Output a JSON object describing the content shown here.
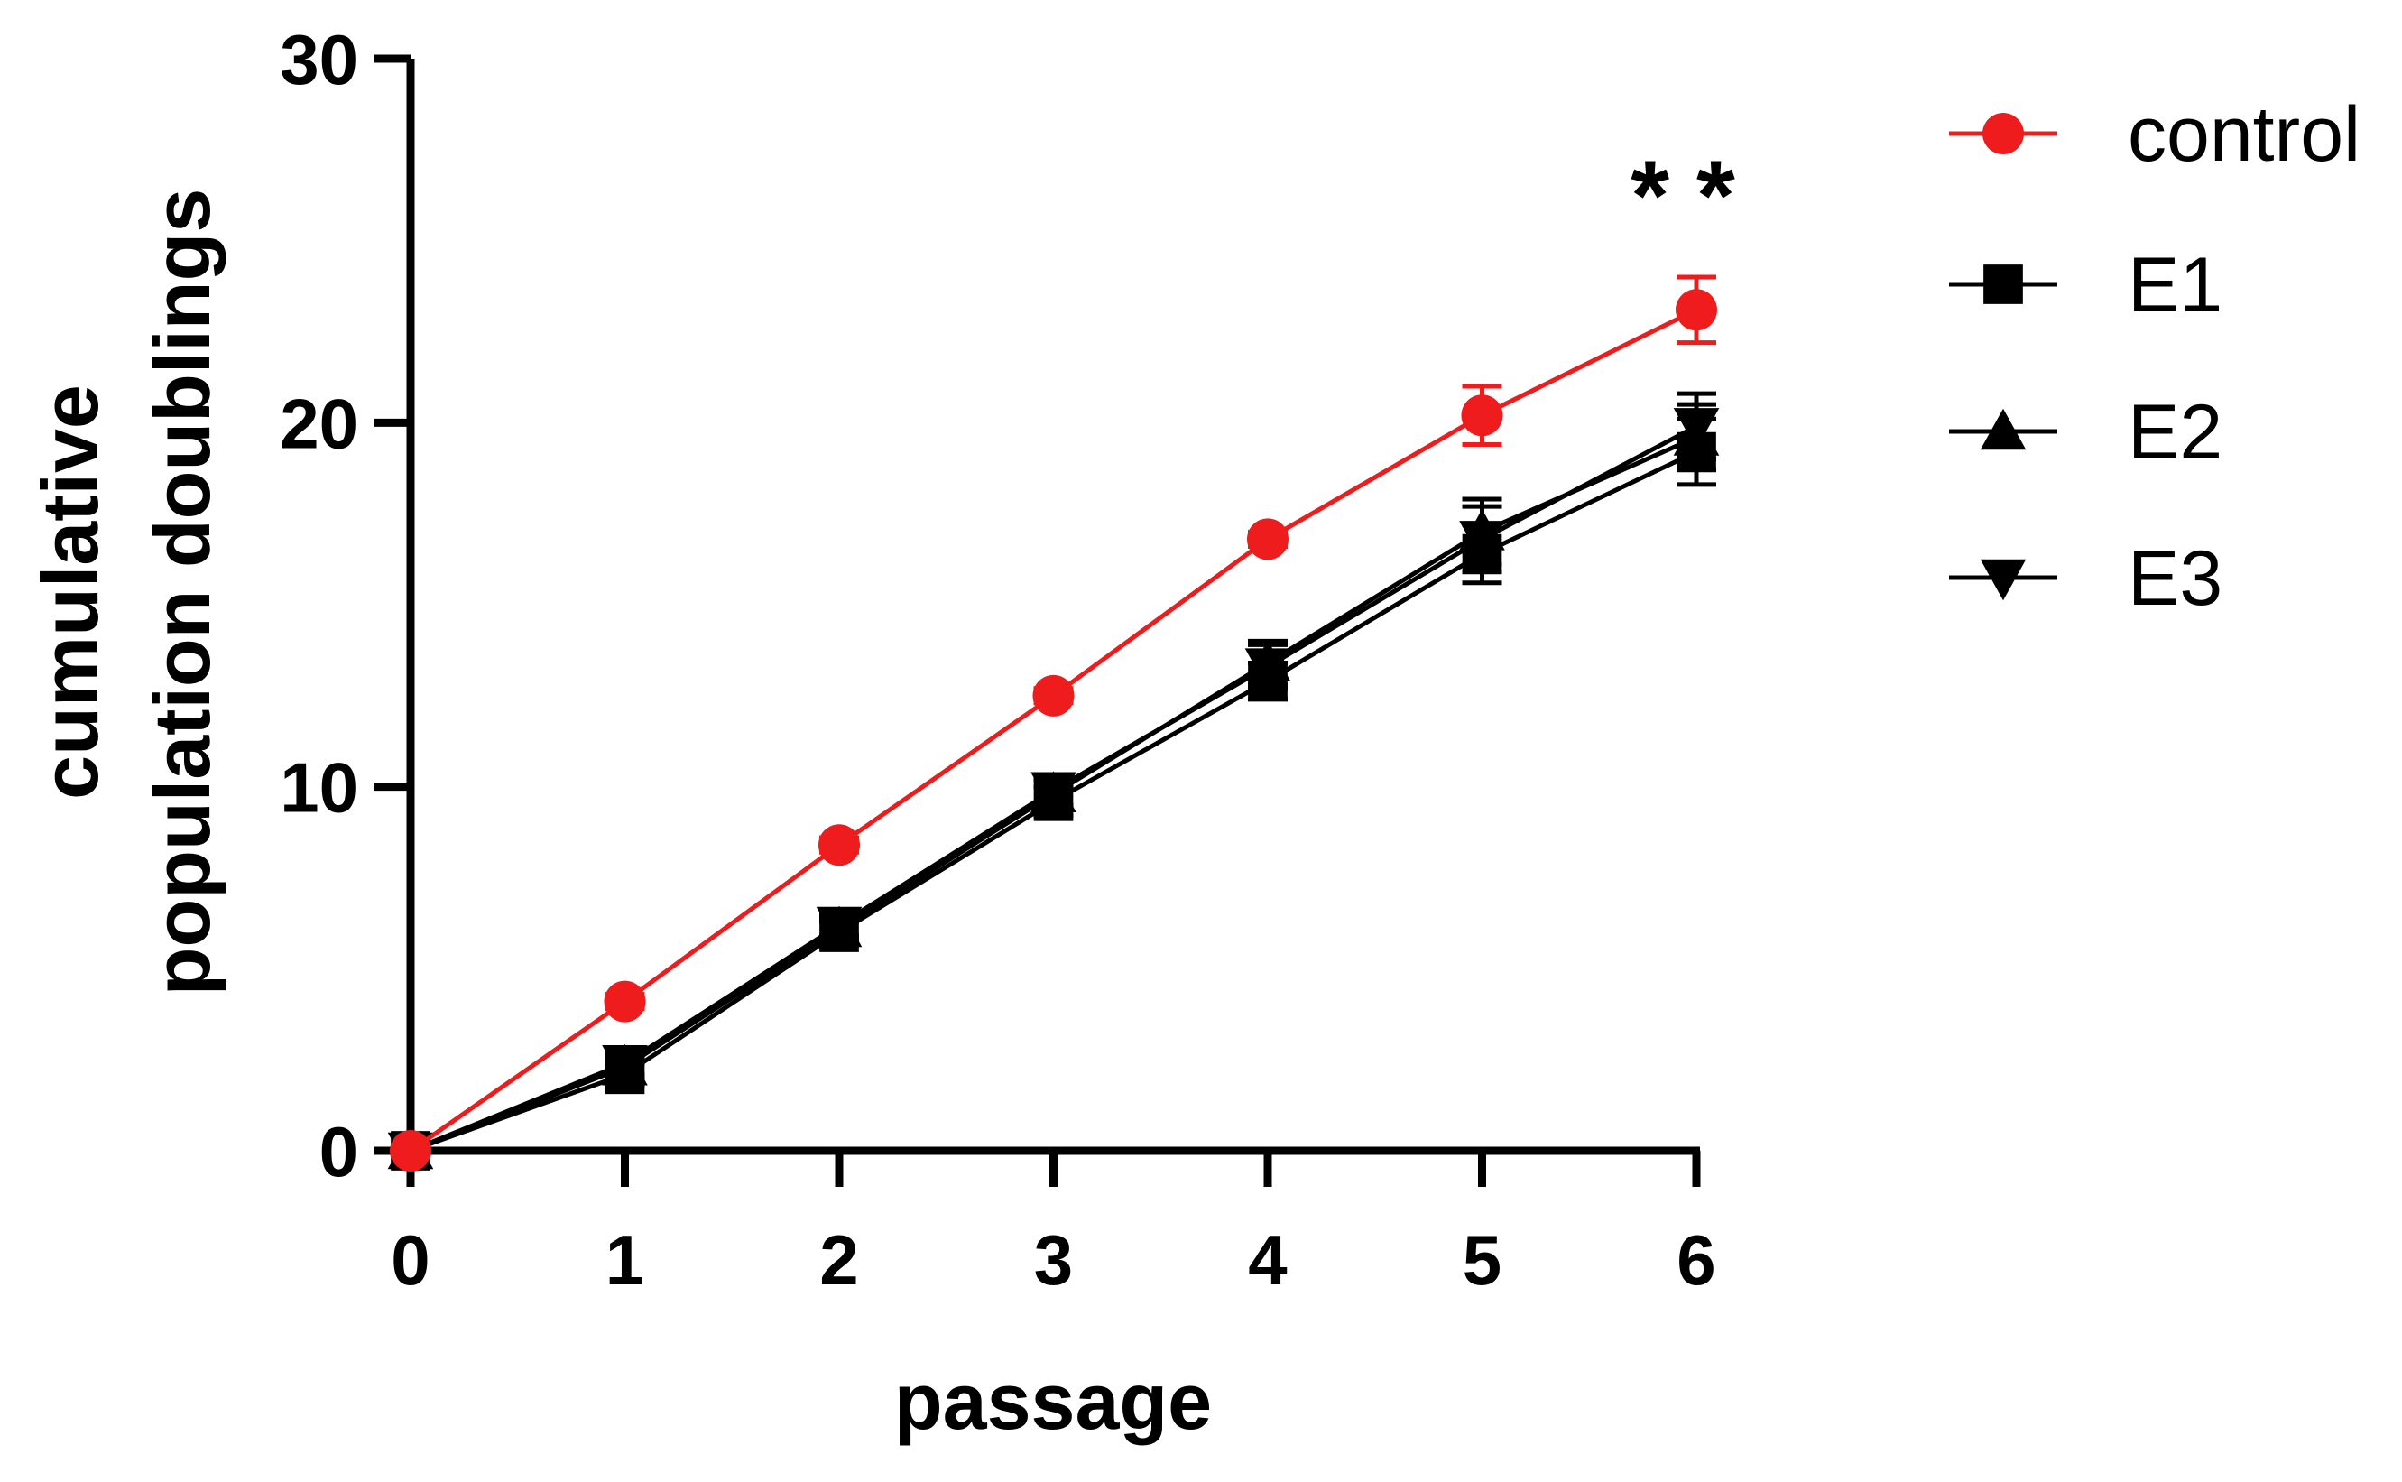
{
  "chart_data": {
    "type": "line",
    "xlabel": "passage",
    "ylabel_lines": [
      "cumulative",
      "population doublings"
    ],
    "xlim": [
      0,
      6
    ],
    "ylim": [
      0,
      30
    ],
    "x_ticks": [
      "0",
      "1",
      "2",
      "3",
      "4",
      "5",
      "6"
    ],
    "y_ticks": [
      "0",
      "10",
      "20",
      "30"
    ],
    "x": [
      0,
      1,
      2,
      3,
      4,
      5,
      6
    ],
    "grid": false,
    "legend_position": "right",
    "series": [
      {
        "name": "control",
        "color": "#ee1c1c",
        "marker": "circle",
        "values": [
          0,
          4.1,
          8.4,
          12.5,
          16.8,
          20.2,
          23.1
        ],
        "errors": [
          0,
          0.2,
          0.2,
          0.2,
          0.2,
          0.8,
          0.9
        ]
      },
      {
        "name": "E1",
        "color": "#000000",
        "marker": "square",
        "values": [
          0,
          2.1,
          6.0,
          9.6,
          12.9,
          16.4,
          19.2
        ],
        "errors": [
          0,
          0.3,
          0.3,
          0.4,
          0.5,
          0.8,
          0.9
        ]
      },
      {
        "name": "E2",
        "color": "#000000",
        "marker": "triangle-up",
        "values": [
          0,
          2.3,
          6.1,
          9.8,
          13.4,
          17.0,
          19.6
        ],
        "errors": [
          0,
          0.3,
          0.3,
          0.4,
          0.6,
          0.9,
          0.9
        ]
      },
      {
        "name": "E3",
        "color": "#000000",
        "marker": "triangle-down",
        "values": [
          0,
          2.4,
          6.2,
          9.9,
          13.3,
          16.8,
          19.9
        ],
        "errors": [
          0,
          0.3,
          0.3,
          0.4,
          0.6,
          0.9,
          0.9
        ]
      }
    ],
    "annotations": [
      {
        "text": "**",
        "x": 6,
        "y": 25.3
      }
    ]
  }
}
